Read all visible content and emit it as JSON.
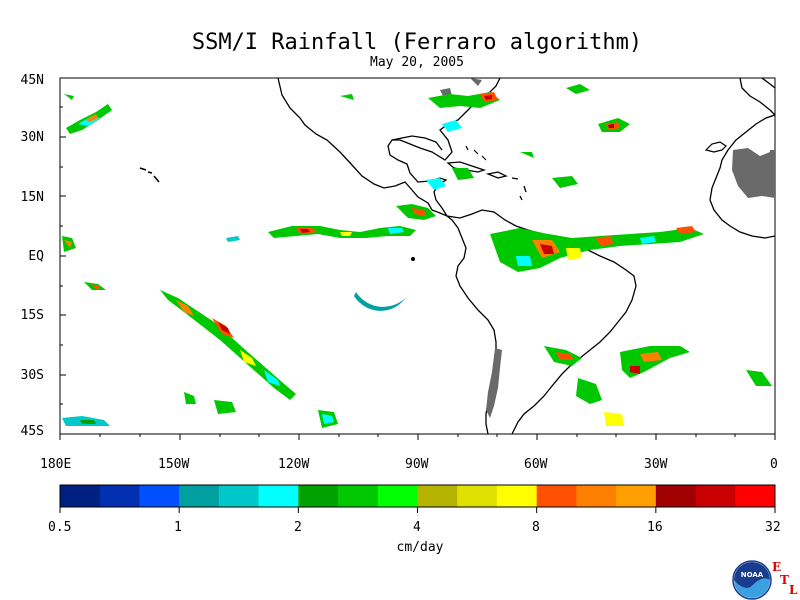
{
  "title": "SSM/I Rainfall (Ferraro algorithm)",
  "subtitle": "May 20, 2005",
  "lat_labels": [
    "45N",
    "30N",
    "15N",
    "EQ",
    "15S",
    "30S",
    "45S"
  ],
  "lon_labels": [
    "180E",
    "150W",
    "120W",
    "90W",
    "60W",
    "30W",
    "0"
  ],
  "colorbar": {
    "colors": [
      "#002080",
      "#0030b0",
      "#0050ff",
      "#00a0a0",
      "#00c8c8",
      "#00ffff",
      "#00a000",
      "#00c800",
      "#00ff00",
      "#b4b400",
      "#e0e000",
      "#ffff00",
      "#ff5000",
      "#ff8000",
      "#ffa000",
      "#a00000",
      "#c80000",
      "#ff0000"
    ],
    "labels": [
      "0.5",
      "1",
      "2",
      "4",
      "8",
      "16",
      "32"
    ],
    "units": "cm/day"
  },
  "logo": {
    "text": "NOAA",
    "letters": [
      "E",
      "T",
      "L"
    ]
  }
}
